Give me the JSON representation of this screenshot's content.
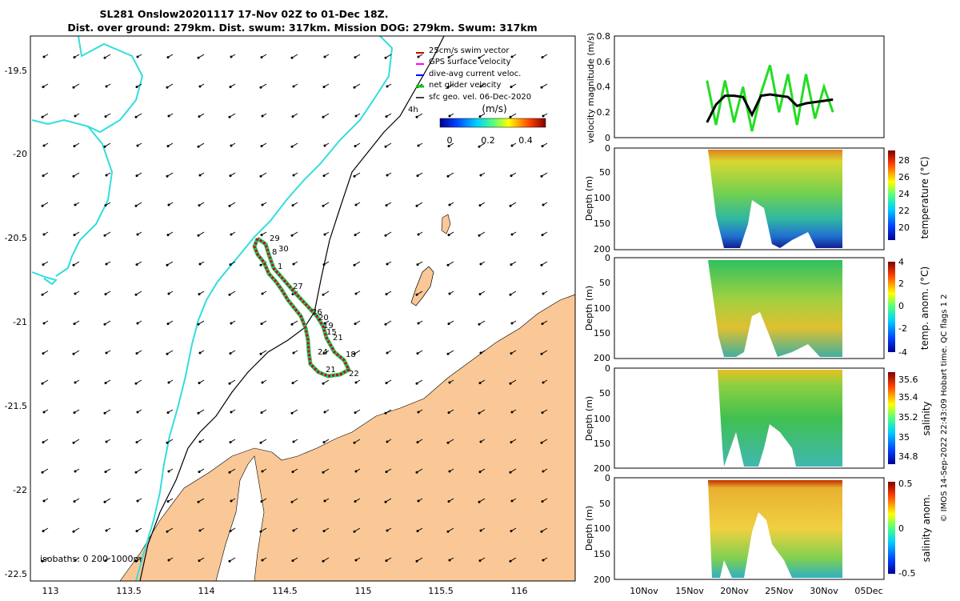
{
  "title": {
    "line1": "SL281 Onslow20201117 17-Nov 02Z to 01-Dec 18Z.",
    "line2": "Dist. over ground: 279km. Dist. swum: 317km. Mission DOG: 279km. Swum: 317km"
  },
  "map": {
    "x_ticks": [
      "113",
      "113.5",
      "114",
      "114.5",
      "115",
      "115.5",
      "116"
    ],
    "y_ticks": [
      "-19.5",
      "-20",
      "-20.5",
      "-21",
      "-21.5",
      "-22",
      "-22.5"
    ],
    "legend": [
      {
        "label": "25cm/s swim vector",
        "color": "#cc0000"
      },
      {
        "label": "GPS surface velocity",
        "color": "#ff00ff"
      },
      {
        "label": "dive-avg current veloc.",
        "color": "#0000ff"
      },
      {
        "label": "net glider velocity",
        "color": "#00cc00"
      },
      {
        "label": "sfc geo. vel. 06-Dec-2020",
        "color": "#000000"
      }
    ],
    "hour_label": "4h",
    "colorbar_unit": "(m/s)",
    "colorbar_ticks": [
      "0",
      "0.2",
      "0.4"
    ],
    "isobaths_label": "isobaths: 0   200  1000m",
    "day_labels": [
      "29",
      "30",
      "8",
      "1",
      "27",
      "26",
      "20",
      "19",
      "15",
      "21",
      "24",
      "18",
      "21",
      "22"
    ],
    "colors": {
      "land": "#fac896",
      "coast_deep": "#33dddd",
      "isobath": "#000000",
      "track": "#dd0000"
    }
  },
  "panels": {
    "velocity_ylabel": "velocity magnitude (m/s)",
    "velocity_ticks": [
      "0",
      "0.2",
      "0.4",
      "0.6",
      "0.8"
    ],
    "depth_ylabel": "Depth (m)",
    "depth_ticks": [
      "0",
      "50",
      "100",
      "150",
      "200"
    ],
    "time_ticks": [
      "10Nov",
      "15Nov",
      "20Nov",
      "25Nov",
      "30Nov",
      "05Dec"
    ],
    "temperature": {
      "label": "temperature (°C)",
      "ticks": [
        "28",
        "26",
        "24",
        "22",
        "20"
      ]
    },
    "temp_anom": {
      "label": "temp. anom. (°C)",
      "ticks": [
        "4",
        "2",
        "0",
        "-2",
        "-4"
      ]
    },
    "salinity": {
      "label": "salinity",
      "ticks": [
        "35.6",
        "35.4",
        "35.2",
        "35",
        "34.8"
      ]
    },
    "sal_anom": {
      "label": "salinity anom.",
      "ticks": [
        "0.5",
        "0",
        "-0.5"
      ]
    },
    "footer_a": "© IMOS 14-Sep-2022 22:43:09 Hobart time. QC flags 1  2"
  },
  "chart_data": {
    "type": "line",
    "title": "",
    "xlabel": "",
    "ylabel": "velocity magnitude (m/s)",
    "ylim": [
      0,
      0.8
    ],
    "xlim": [
      "05Nov",
      "07Dec"
    ],
    "series": [
      {
        "x": [
          "17Nov",
          "18Nov",
          "19Nov",
          "20Nov",
          "21Nov",
          "22Nov",
          "23Nov",
          "24Nov",
          "25Nov",
          "26Nov",
          "27Nov",
          "28Nov",
          "29Nov",
          "30Nov",
          "01Dec"
        ],
        "values": [
          0.12,
          0.26,
          0.33,
          0.33,
          0.32,
          0.18,
          0.33,
          0.34,
          0.33,
          0.32,
          0.25,
          0.27,
          0.28,
          0.29,
          0.3
        ]
      },
      {
        "x": [
          "17Nov",
          "18Nov",
          "19Nov",
          "20Nov",
          "21Nov",
          "22Nov",
          "23Nov",
          "24Nov",
          "25Nov",
          "26Nov",
          "27Nov",
          "28Nov",
          "29Nov",
          "30Nov",
          "01Dec"
        ],
        "values": [
          0.45,
          0.1,
          0.45,
          0.12,
          0.4,
          0.05,
          0.35,
          0.57,
          0.2,
          0.5,
          0.1,
          0.5,
          0.15,
          0.4,
          0.2
        ]
      }
    ]
  }
}
